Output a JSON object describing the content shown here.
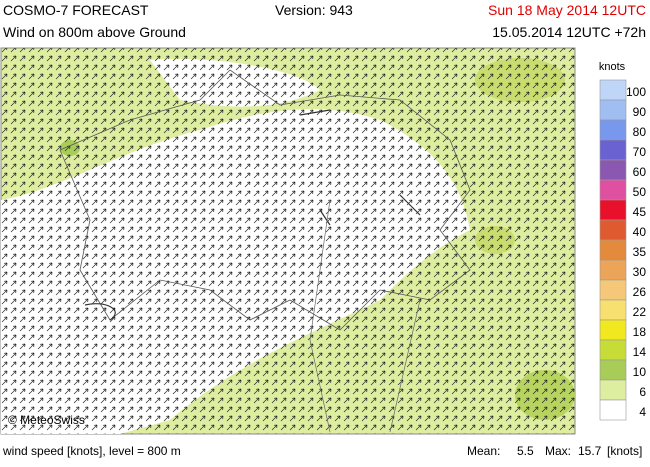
{
  "header": {
    "title": "COSMO-7 FORECAST",
    "version": "Version: 943",
    "valid": "Sun 18 May 2014 12UTC",
    "subtitle": "Wind on 800m above Ground",
    "run": "15.05.2014 12UTC +72h"
  },
  "map": {
    "copyright": "© MeteoSwiss"
  },
  "legend": {
    "unit": "knots",
    "levels": [
      {
        "value": 100,
        "color": "#c0d6f8"
      },
      {
        "value": 90,
        "color": "#a0bef2"
      },
      {
        "value": 80,
        "color": "#7898ee"
      },
      {
        "value": 70,
        "color": "#6a62d0"
      },
      {
        "value": 60,
        "color": "#8a58b0"
      },
      {
        "value": 50,
        "color": "#e050a0"
      },
      {
        "value": 45,
        "color": "#e8102a"
      },
      {
        "value": 40,
        "color": "#e05a30"
      },
      {
        "value": 35,
        "color": "#e48a3c"
      },
      {
        "value": 30,
        "color": "#eca458"
      },
      {
        "value": 26,
        "color": "#f4c878"
      },
      {
        "value": 22,
        "color": "#f8e070"
      },
      {
        "value": 18,
        "color": "#f2e820"
      },
      {
        "value": 14,
        "color": "#c8dc38"
      },
      {
        "value": 10,
        "color": "#a8cc58"
      },
      {
        "value": 6,
        "color": "#deeea0"
      },
      {
        "value": 4,
        "color": "#ffffff"
      }
    ]
  },
  "footer": {
    "variable": "wind speed [knots], level = 800 m",
    "mean_label": "Mean:",
    "mean": 5.5,
    "max_label": "Max:",
    "max": 15.7,
    "unit": "[knots]"
  }
}
